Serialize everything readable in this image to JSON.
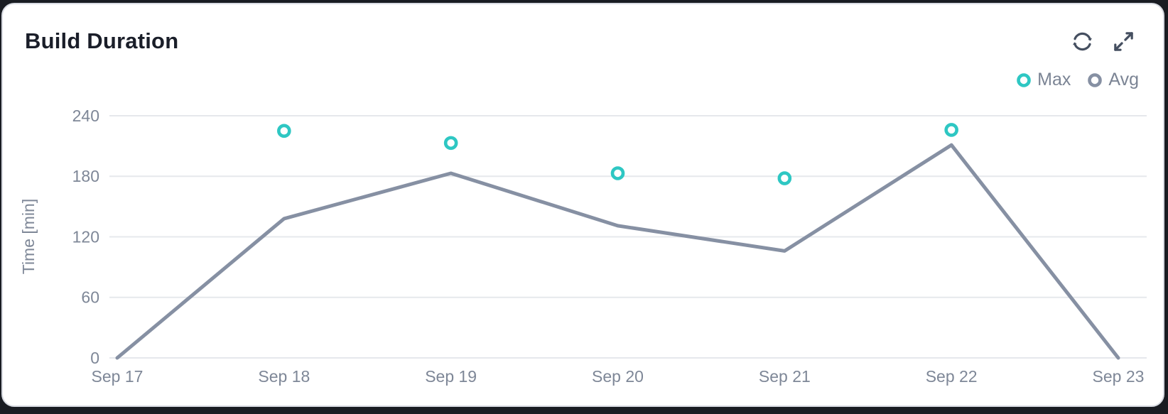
{
  "card": {
    "title": "Build Duration"
  },
  "toolbar": {
    "refresh_icon": "refresh",
    "expand_icon": "expand-fullscreen",
    "icon_color": "#454f60"
  },
  "legend": {
    "items": [
      {
        "label": "Max",
        "color": "#2ec7c3"
      },
      {
        "label": "Avg",
        "color": "#8690a3"
      }
    ]
  },
  "chart_data": {
    "type": "line",
    "title": "Build Duration",
    "categories": [
      "Sep 17",
      "Sep 18",
      "Sep 19",
      "Sep 20",
      "Sep 21",
      "Sep 22",
      "Sep 23"
    ],
    "series": [
      {
        "name": "Avg",
        "type": "line",
        "color": "#8690a3",
        "values": [
          0,
          138,
          183,
          131,
          106,
          211,
          0
        ]
      },
      {
        "name": "Max",
        "type": "scatter",
        "color": "#2ec7c3",
        "values": [
          null,
          225,
          213,
          183,
          178,
          226,
          null
        ]
      }
    ],
    "ylabel": "Time [min]",
    "y_ticks": [
      0,
      60,
      120,
      180,
      240
    ],
    "ylim": [
      0,
      240
    ],
    "grid": true,
    "grid_color": "#e6e8ec",
    "axis_text_color": "#7e8797",
    "legend_position": "top-right"
  }
}
